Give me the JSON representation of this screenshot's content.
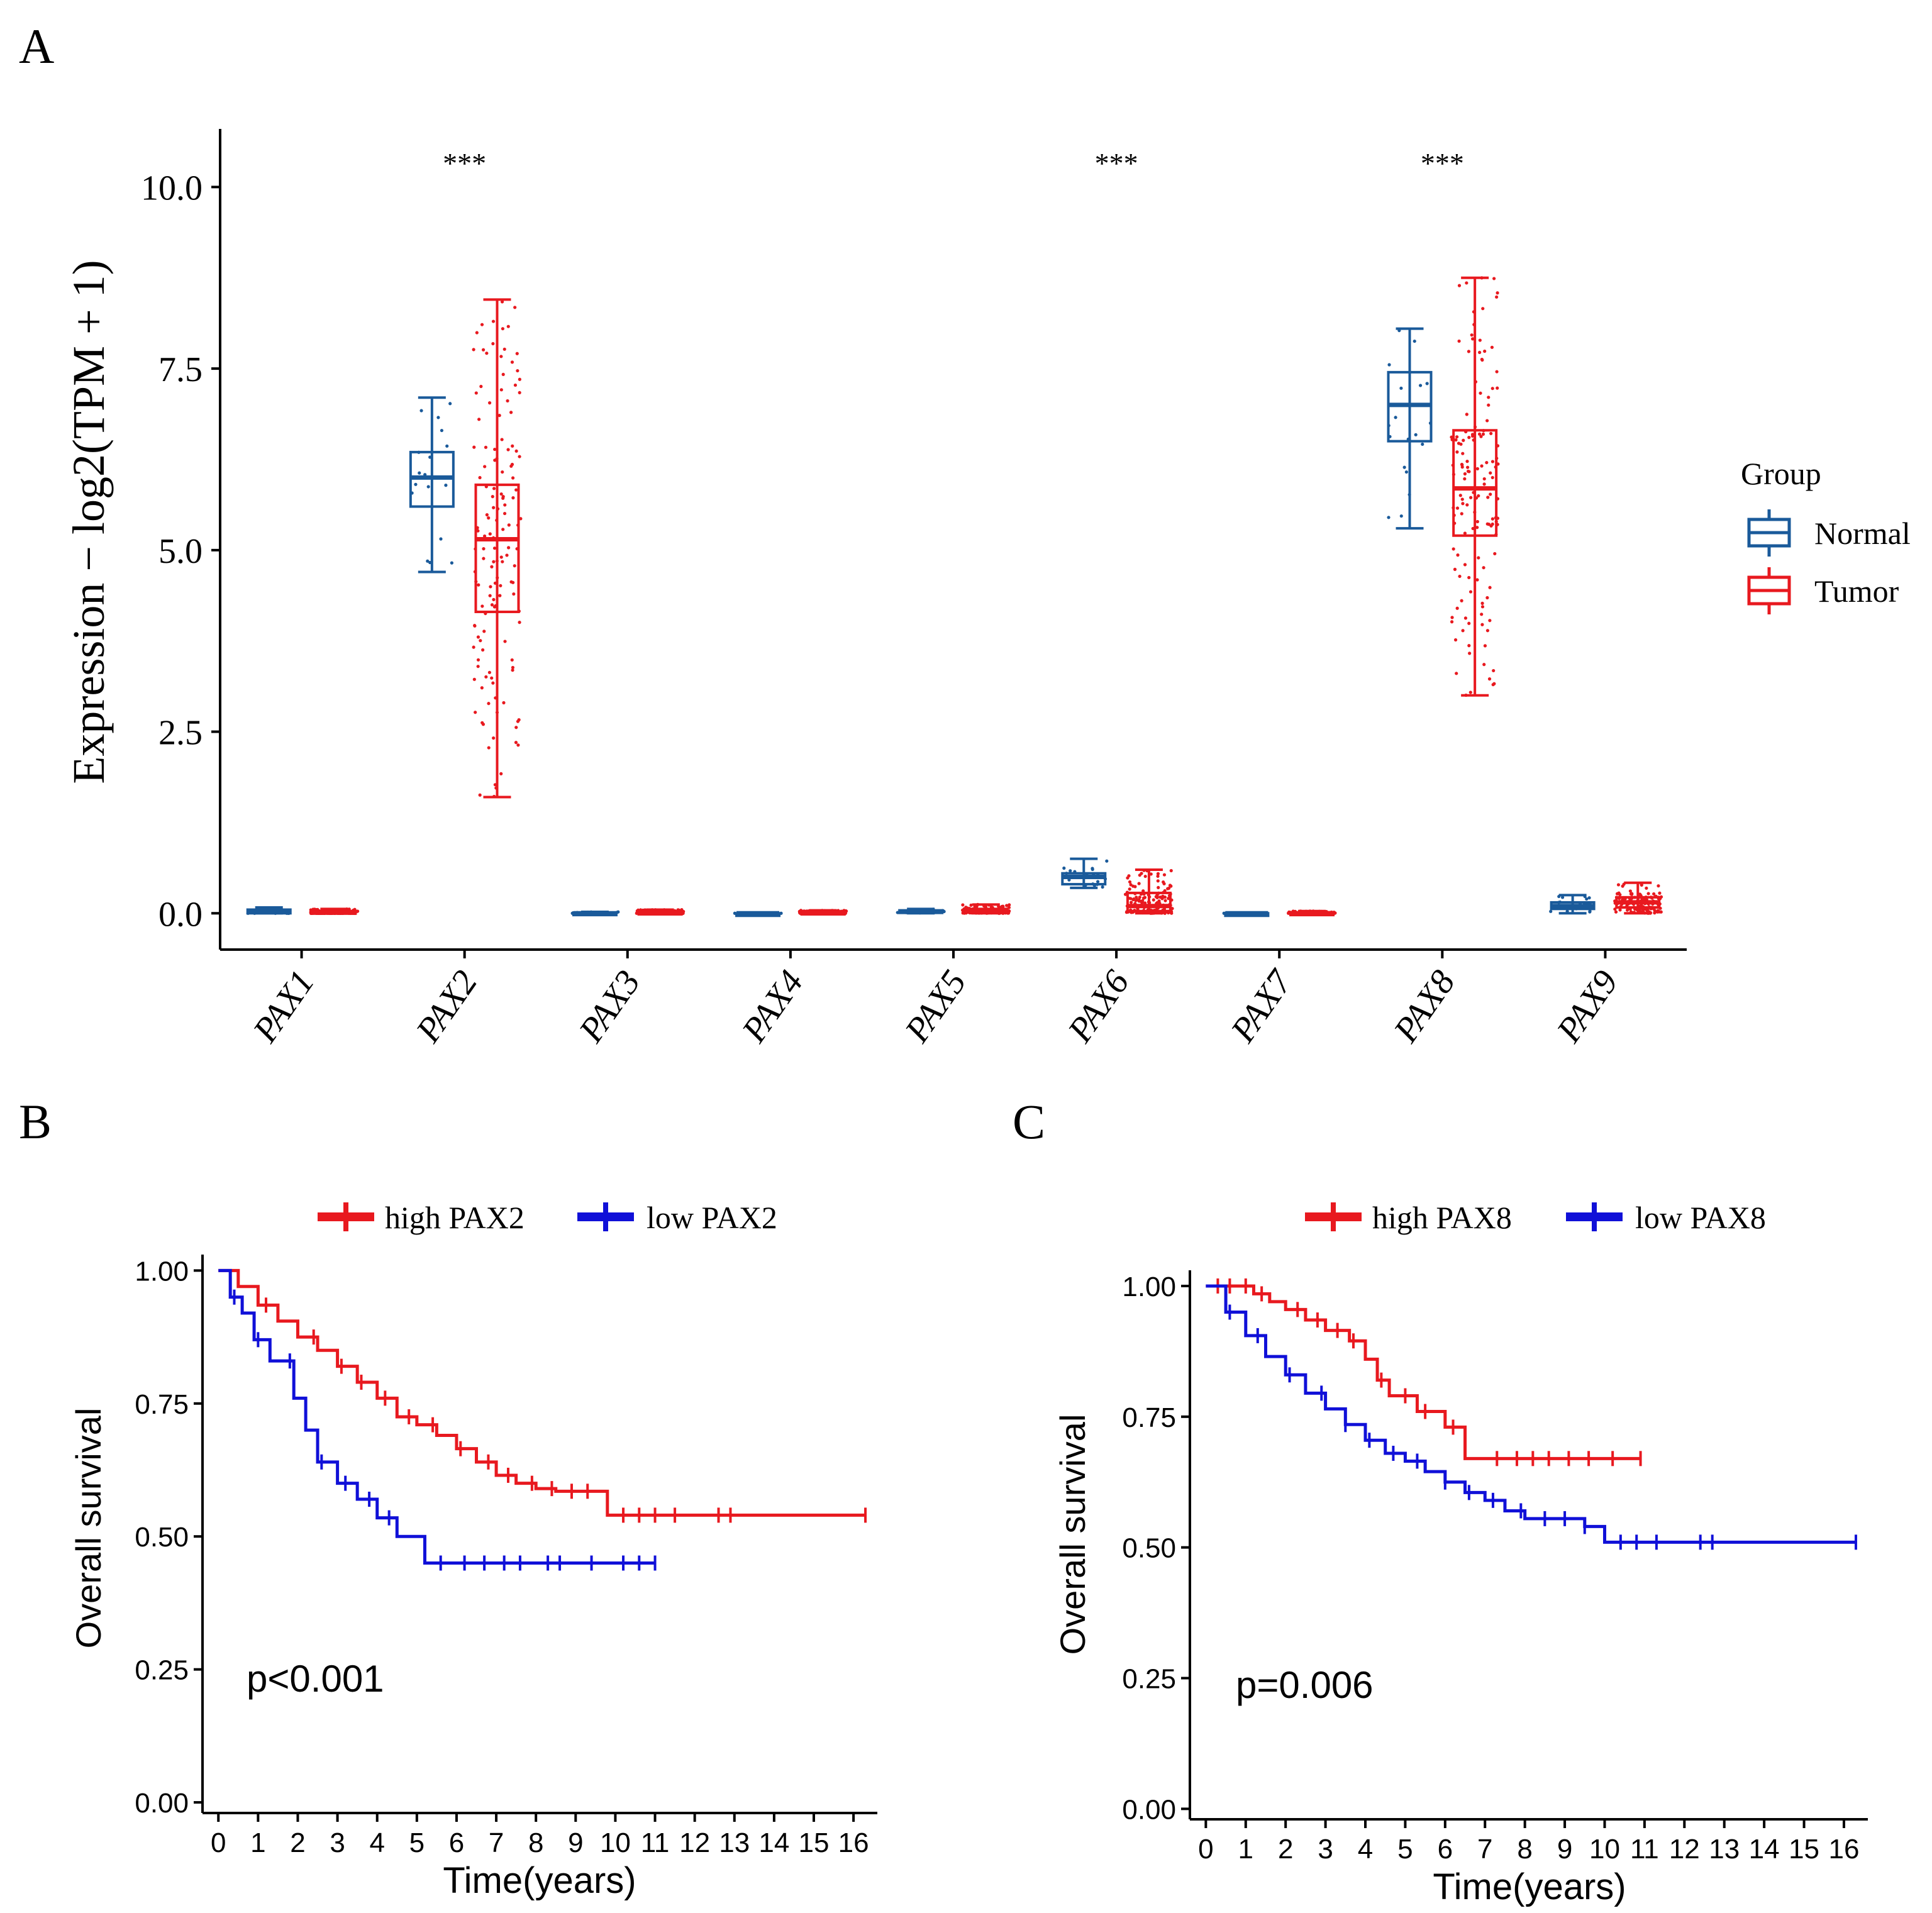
{
  "panels": {
    "a": "A",
    "b": "B",
    "c": "C"
  },
  "chart_data": [
    {
      "type": "boxplot",
      "panel": "A",
      "ylabel": "Expression − log2(TPM + 1)",
      "ylim": [
        -0.5,
        10.8
      ],
      "yticks": [
        "0.0",
        "2.5",
        "5.0",
        "7.5",
        "10.0"
      ],
      "ytick_values": [
        0,
        2.5,
        5,
        7.5,
        10
      ],
      "categories": [
        "PAX1",
        "PAX2",
        "PAX3",
        "PAX4",
        "PAX5",
        "PAX6",
        "PAX7",
        "PAX8",
        "PAX9"
      ],
      "significance": [
        "",
        "***",
        "",
        "",
        "",
        "***",
        "",
        "***",
        ""
      ],
      "legend": {
        "title": "Group",
        "entries": [
          "Normal",
          "Tumor"
        ],
        "colors": [
          "#1a5a9a",
          "#e8191f"
        ]
      },
      "series": [
        {
          "name": "Normal",
          "color": "#1a5a9a",
          "boxes": [
            {
              "min": 0.0,
              "q1": 0.0,
              "median": 0.02,
              "q3": 0.05,
              "max": 0.08
            },
            {
              "min": 4.7,
              "q1": 5.6,
              "median": 6.0,
              "q3": 6.35,
              "max": 7.1
            },
            {
              "min": 0.0,
              "q1": 0.0,
              "median": 0.0,
              "q3": 0.01,
              "max": 0.02
            },
            {
              "min": 0.0,
              "q1": 0.0,
              "median": 0.0,
              "q3": 0.0,
              "max": 0.0
            },
            {
              "min": 0.0,
              "q1": 0.01,
              "median": 0.02,
              "q3": 0.04,
              "max": 0.06
            },
            {
              "min": 0.35,
              "q1": 0.4,
              "median": 0.5,
              "q3": 0.55,
              "max": 0.75
            },
            {
              "min": 0.0,
              "q1": 0.0,
              "median": 0.0,
              "q3": 0.0,
              "max": 0.0
            },
            {
              "min": 5.3,
              "q1": 6.5,
              "median": 7.0,
              "q3": 7.45,
              "max": 8.05
            },
            {
              "min": 0.0,
              "q1": 0.06,
              "median": 0.1,
              "q3": 0.15,
              "max": 0.25
            }
          ]
        },
        {
          "name": "Tumor",
          "color": "#e8191f",
          "boxes": [
            {
              "min": 0.0,
              "q1": 0.0,
              "median": 0.01,
              "q3": 0.03,
              "max": 0.06
            },
            {
              "min": 1.6,
              "q1": 4.15,
              "median": 5.15,
              "q3": 5.9,
              "max": 8.45
            },
            {
              "min": 0.0,
              "q1": 0.0,
              "median": 0.01,
              "q3": 0.02,
              "max": 0.05
            },
            {
              "min": 0.0,
              "q1": 0.0,
              "median": 0.01,
              "q3": 0.02,
              "max": 0.04
            },
            {
              "min": 0.0,
              "q1": 0.01,
              "median": 0.03,
              "q3": 0.06,
              "max": 0.12
            },
            {
              "min": 0.0,
              "q1": 0.03,
              "median": 0.1,
              "q3": 0.28,
              "max": 0.6
            },
            {
              "min": 0.0,
              "q1": 0.0,
              "median": 0.0,
              "q3": 0.01,
              "max": 0.03
            },
            {
              "min": 3.0,
              "q1": 5.2,
              "median": 5.85,
              "q3": 6.65,
              "max": 8.75
            },
            {
              "min": 0.0,
              "q1": 0.08,
              "median": 0.15,
              "q3": 0.22,
              "max": 0.42
            }
          ]
        }
      ]
    },
    {
      "type": "line",
      "subtype": "kaplan-meier",
      "panel": "B",
      "xlabel": "Time(years)",
      "ylabel": "Overall survival",
      "xlim": [
        -0.4,
        16.6
      ],
      "ylim": [
        -0.02,
        1.03
      ],
      "xticks": [
        "0",
        "1",
        "2",
        "3",
        "4",
        "5",
        "6",
        "7",
        "8",
        "9",
        "10",
        "11",
        "12",
        "13",
        "14",
        "15",
        "16"
      ],
      "yticks": [
        "0.00",
        "0.25",
        "0.50",
        "0.75",
        "1.00"
      ],
      "ytick_values": [
        0,
        0.25,
        0.5,
        0.75,
        1.0
      ],
      "annotation": "p<0.001",
      "legend": [
        "high PAX2",
        "low PAX2"
      ],
      "series": [
        {
          "name": "high PAX2",
          "color": "#e8191f",
          "x": [
            0,
            0.5,
            1,
            1.5,
            2,
            2.5,
            3,
            3.5,
            4,
            4.5,
            5,
            5.5,
            6,
            6.5,
            7,
            7.5,
            8,
            8.5,
            9,
            9.5,
            9.8,
            10.5,
            12,
            14,
            16.3
          ],
          "y": [
            1.0,
            0.97,
            0.935,
            0.905,
            0.875,
            0.85,
            0.82,
            0.79,
            0.76,
            0.725,
            0.71,
            0.69,
            0.665,
            0.64,
            0.615,
            0.6,
            0.59,
            0.585,
            0.585,
            0.585,
            0.54,
            0.54,
            0.54,
            0.54,
            0.54
          ],
          "censor_x": [
            1.2,
            2.4,
            3.1,
            3.6,
            4.2,
            4.8,
            5.4,
            6.1,
            6.8,
            7.3,
            7.9,
            8.4,
            8.9,
            9.3,
            10.2,
            10.6,
            11.0,
            11.5,
            12.6,
            12.9,
            16.3
          ]
        },
        {
          "name": "low PAX2",
          "color": "#1010d8",
          "x": [
            0,
            0.3,
            0.6,
            0.9,
            1.3,
            1.6,
            1.9,
            2.2,
            2.5,
            3.0,
            3.5,
            4.0,
            4.5,
            5.0,
            5.2,
            6,
            8,
            11.0
          ],
          "y": [
            1.0,
            0.95,
            0.92,
            0.87,
            0.83,
            0.83,
            0.76,
            0.7,
            0.64,
            0.6,
            0.57,
            0.535,
            0.5,
            0.5,
            0.45,
            0.45,
            0.45,
            0.45
          ],
          "censor_x": [
            0.4,
            1.0,
            1.8,
            2.6,
            3.2,
            3.8,
            4.3,
            5.6,
            6.2,
            6.7,
            7.2,
            7.6,
            8.3,
            8.6,
            9.4,
            10.2,
            10.6,
            11.0
          ]
        }
      ]
    },
    {
      "type": "line",
      "subtype": "kaplan-meier",
      "panel": "C",
      "xlabel": "Time(years)",
      "ylabel": "Overall survival",
      "xlim": [
        -0.4,
        16.6
      ],
      "ylim": [
        -0.02,
        1.03
      ],
      "xticks": [
        "0",
        "1",
        "2",
        "3",
        "4",
        "5",
        "6",
        "7",
        "8",
        "9",
        "10",
        "11",
        "12",
        "13",
        "14",
        "15",
        "16"
      ],
      "yticks": [
        "0.00",
        "0.25",
        "0.50",
        "0.75",
        "1.00"
      ],
      "ytick_values": [
        0,
        0.25,
        0.5,
        0.75,
        1.0
      ],
      "annotation": "p=0.006",
      "legend": [
        "high PAX8",
        "low PAX8"
      ],
      "series": [
        {
          "name": "high PAX8",
          "color": "#e8191f",
          "x": [
            0,
            0.8,
            1.2,
            1.6,
            2.0,
            2.5,
            3.0,
            3.6,
            4.0,
            4.3,
            4.6,
            5.3,
            6.0,
            6.5,
            7,
            9,
            10.9
          ],
          "y": [
            1.0,
            1.0,
            0.985,
            0.97,
            0.955,
            0.935,
            0.915,
            0.895,
            0.86,
            0.82,
            0.79,
            0.76,
            0.73,
            0.67,
            0.67,
            0.67,
            0.67
          ],
          "censor_x": [
            0.3,
            0.6,
            1.0,
            1.4,
            2.3,
            2.8,
            3.3,
            3.7,
            4.4,
            5.0,
            5.5,
            6.2,
            7.3,
            7.8,
            8.2,
            8.6,
            9.1,
            9.6,
            10.2,
            10.9
          ]
        },
        {
          "name": "low PAX8",
          "color": "#1010d8",
          "x": [
            0,
            0.5,
            1,
            1.5,
            2,
            2.5,
            3,
            3.5,
            4,
            4.5,
            5,
            5.5,
            6,
            6.5,
            7,
            7.5,
            8,
            8.5,
            9,
            9.5,
            10,
            12,
            14,
            16.3
          ],
          "y": [
            1.0,
            0.95,
            0.905,
            0.865,
            0.83,
            0.795,
            0.765,
            0.735,
            0.705,
            0.68,
            0.665,
            0.645,
            0.625,
            0.605,
            0.59,
            0.57,
            0.555,
            0.555,
            0.555,
            0.54,
            0.51,
            0.51,
            0.51,
            0.51
          ],
          "censor_x": [
            0.6,
            1.3,
            2.1,
            2.9,
            3.5,
            4.1,
            4.7,
            5.3,
            6.0,
            6.6,
            7.2,
            7.9,
            8.5,
            9.0,
            9.5,
            10.4,
            10.8,
            11.3,
            12.4,
            12.7,
            16.3
          ]
        }
      ]
    }
  ]
}
